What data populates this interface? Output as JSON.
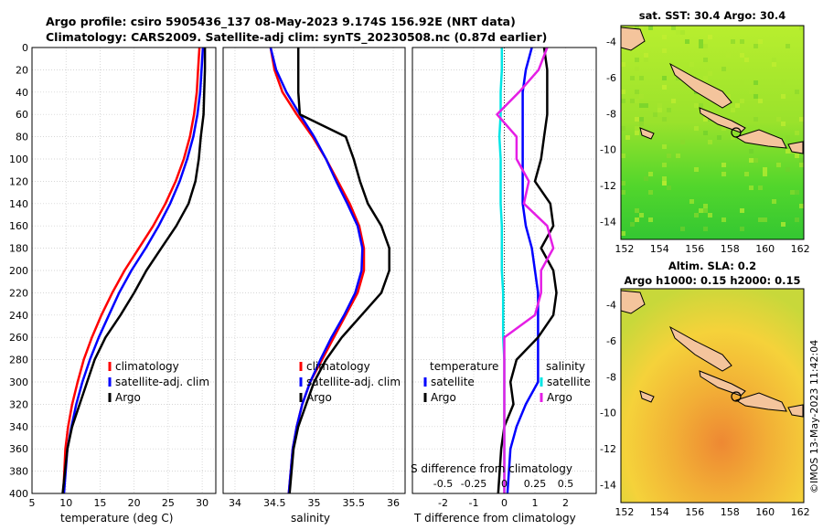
{
  "title_line1": "Argo profile: csiro 5905436_137 08-May-2023 9.174S 156.92E (NRT data)",
  "title_line2": "Climatology: CARS2009. Satellite-adj clim: synTS_20230508.nc (0.87d earlier)",
  "side_text": "©IMOS 13-May-2023 11:42:04",
  "map_top_title": "sat. SST: 30.4 Argo: 30.4",
  "map_bottom_title_line1": "Altim. SLA: 0.2",
  "map_bottom_title_line2": "Argo h1000: 0.15 h2000: 0.15",
  "colors": {
    "climatology": "#ff0000",
    "satellite": "#0000ff",
    "argo": "#000000",
    "t_sat": "#00e5e5",
    "s_sat": "#e51ee5",
    "land": "#f4c49c"
  },
  "chart_data": [
    {
      "type": "line",
      "name": "temperature",
      "title": "",
      "xlabel": "temperature (deg C)",
      "ylabel": "",
      "xlim": [
        5,
        32
      ],
      "ylim": [
        0,
        400
      ],
      "xticks": [
        "5",
        "10",
        "15",
        "20",
        "25",
        "30"
      ],
      "yticks": [
        "0",
        "20",
        "40",
        "60",
        "80",
        "100",
        "120",
        "140",
        "160",
        "180",
        "200",
        "220",
        "240",
        "260",
        "280",
        "300",
        "320",
        "340",
        "360",
        "380",
        "400"
      ],
      "legend": [
        "climatology",
        "satellite-adj. clim",
        "Argo"
      ],
      "legend_position": "lower-right",
      "series": [
        {
          "name": "climatology",
          "color": "#ff0000",
          "x": [
            29.6,
            29.4,
            29.2,
            28.8,
            28.2,
            27.3,
            26.1,
            24.6,
            22.8,
            20.7,
            18.6,
            16.8,
            15.2,
            13.8,
            12.6,
            11.7,
            10.9,
            10.3,
            9.9,
            9.6
          ],
          "y": [
            0,
            20,
            40,
            60,
            80,
            100,
            120,
            140,
            160,
            180,
            200,
            220,
            240,
            260,
            280,
            300,
            320,
            340,
            360,
            400
          ]
        },
        {
          "name": "satellite-adj. clim",
          "color": "#0000ff",
          "x": [
            30.1,
            29.9,
            29.7,
            29.3,
            28.7,
            27.8,
            26.7,
            25.3,
            23.6,
            21.7,
            19.6,
            17.8,
            16.3,
            14.8,
            13.5,
            12.4,
            11.5,
            10.8,
            10.2,
            9.7
          ],
          "y": [
            0,
            20,
            40,
            60,
            80,
            100,
            120,
            140,
            160,
            180,
            200,
            220,
            240,
            260,
            280,
            300,
            320,
            340,
            360,
            400
          ]
        },
        {
          "name": "Argo",
          "color": "#000000",
          "x": [
            30.4,
            30.4,
            30.3,
            30.2,
            29.8,
            29.5,
            29.0,
            28.0,
            26.2,
            24.0,
            21.8,
            20.0,
            18.0,
            15.8,
            14.2,
            13.1,
            12.0,
            10.9,
            10.2,
            9.5
          ],
          "y": [
            0,
            20,
            40,
            60,
            80,
            100,
            120,
            140,
            160,
            180,
            200,
            220,
            240,
            260,
            280,
            300,
            320,
            340,
            360,
            400
          ]
        }
      ]
    },
    {
      "type": "line",
      "name": "salinity",
      "title": "",
      "xlabel": "salinity",
      "ylabel": "",
      "xlim": [
        33.85,
        36.15
      ],
      "ylim": [
        0,
        400
      ],
      "xticks": [
        "34",
        "34.5",
        "35",
        "35.5",
        "36"
      ],
      "legend": [
        "climatology",
        "satellite-adj. clim",
        "Argo"
      ],
      "legend_position": "lower-right",
      "series": [
        {
          "name": "climatology",
          "color": "#ff0000",
          "x": [
            34.45,
            34.5,
            34.6,
            34.78,
            34.98,
            35.15,
            35.3,
            35.45,
            35.57,
            35.63,
            35.63,
            35.55,
            35.4,
            35.25,
            35.1,
            34.95,
            34.85,
            34.78,
            34.73,
            34.68
          ],
          "y": [
            0,
            20,
            40,
            60,
            80,
            100,
            120,
            140,
            160,
            180,
            200,
            220,
            240,
            260,
            280,
            300,
            320,
            340,
            360,
            400
          ]
        },
        {
          "name": "satellite-adj. clim",
          "color": "#0000ff",
          "x": [
            34.45,
            34.52,
            34.65,
            34.82,
            35.0,
            35.15,
            35.28,
            35.42,
            35.55,
            35.61,
            35.6,
            35.52,
            35.38,
            35.22,
            35.08,
            34.95,
            34.85,
            34.78,
            34.73,
            34.68
          ],
          "y": [
            0,
            20,
            40,
            60,
            80,
            100,
            120,
            140,
            160,
            180,
            200,
            220,
            240,
            260,
            280,
            300,
            320,
            340,
            360,
            400
          ]
        },
        {
          "name": "Argo",
          "color": "#000000",
          "x": [
            34.8,
            34.8,
            34.8,
            34.82,
            35.4,
            35.5,
            35.58,
            35.68,
            35.85,
            35.95,
            35.95,
            35.85,
            35.6,
            35.35,
            35.15,
            35.0,
            34.9,
            34.8,
            34.74,
            34.69
          ],
          "y": [
            0,
            20,
            40,
            60,
            80,
            100,
            120,
            140,
            160,
            180,
            200,
            220,
            240,
            260,
            280,
            300,
            320,
            340,
            360,
            400
          ]
        }
      ]
    },
    {
      "type": "line",
      "name": "difference",
      "title": "",
      "xlabel": "T difference from climatology",
      "ylabel": "",
      "xlim": [
        -3,
        3
      ],
      "ylim": [
        0,
        400
      ],
      "xticks": [
        "-2",
        "-1",
        "0",
        "1",
        "2"
      ],
      "secondary_xlabel": "S difference from climatology",
      "secondary_xticks": [
        "-0.5",
        "-0.25",
        "0",
        "0.25",
        "0.5"
      ],
      "secondary_xlim": [
        -0.75,
        0.75
      ],
      "legend": [
        "temperature",
        "satellite",
        "Argo",
        "salinity",
        "satellite",
        "Argo"
      ],
      "series": [
        {
          "name": "T satellite",
          "color": "#0000ff",
          "x": [
            0.9,
            0.7,
            0.6,
            0.6,
            0.6,
            0.6,
            0.6,
            0.6,
            0.7,
            0.9,
            1.0,
            1.1,
            1.1,
            1.1,
            1.1,
            1.1,
            0.7,
            0.4,
            0.2,
            0.1
          ],
          "y": [
            0,
            20,
            40,
            60,
            80,
            100,
            120,
            140,
            160,
            180,
            200,
            220,
            240,
            260,
            280,
            300,
            320,
            340,
            360,
            400
          ]
        },
        {
          "name": "T Argo",
          "color": "#000000",
          "x": [
            1.3,
            1.4,
            1.4,
            1.4,
            1.3,
            1.2,
            1.0,
            1.5,
            1.6,
            1.2,
            1.6,
            1.7,
            1.6,
            1.1,
            0.4,
            0.2,
            0.3,
            0.0,
            -0.1,
            -0.2
          ],
          "y": [
            0,
            20,
            40,
            60,
            80,
            100,
            120,
            140,
            160,
            180,
            200,
            220,
            240,
            260,
            280,
            300,
            320,
            340,
            360,
            400
          ]
        },
        {
          "name": "S satellite",
          "color": "#00e5e5",
          "x": [
            -0.02,
            -0.02,
            -0.03,
            -0.03,
            -0.04,
            -0.03,
            -0.03,
            -0.03,
            -0.02,
            -0.02,
            -0.02,
            -0.01,
            -0.01,
            -0.01,
            0.0,
            0.0,
            0.0,
            0.0,
            0.0,
            0.0
          ],
          "y": [
            0,
            20,
            40,
            60,
            80,
            100,
            120,
            140,
            160,
            180,
            200,
            220,
            240,
            260,
            280,
            300,
            320,
            340,
            360,
            400
          ]
        },
        {
          "name": "S Argo",
          "color": "#e51ee5",
          "x": [
            0.35,
            0.28,
            0.12,
            -0.06,
            0.1,
            0.1,
            0.2,
            0.16,
            0.35,
            0.4,
            0.3,
            0.3,
            0.25,
            0.0,
            0.0,
            0.0,
            0.0,
            0.0,
            0.0,
            0.0
          ],
          "y": [
            0,
            20,
            40,
            60,
            80,
            100,
            120,
            140,
            160,
            180,
            200,
            220,
            240,
            260,
            280,
            300,
            320,
            340,
            360,
            400
          ]
        }
      ]
    },
    {
      "type": "heatmap",
      "name": "sst-map",
      "title": "sat. SST: 30.4 Argo: 30.4",
      "xlim": [
        151.8,
        162.2
      ],
      "ylim": [
        -15,
        -3.1
      ],
      "xticks": [
        "152",
        "154",
        "156",
        "158",
        "160",
        "162"
      ],
      "yticks": [
        "-4",
        "-6",
        "-8",
        "-10",
        "-12",
        "-14"
      ],
      "argo_position": [
        156.92,
        -9.174
      ]
    },
    {
      "type": "heatmap",
      "name": "sla-map",
      "title": "Altim. SLA: 0.2 / Argo h1000: 0.15 h2000: 0.15",
      "xlim": [
        151.8,
        162.2
      ],
      "ylim": [
        -15,
        -3.1
      ],
      "xticks": [
        "152",
        "154",
        "156",
        "158",
        "160",
        "162"
      ],
      "yticks": [
        "-4",
        "-6",
        "-8",
        "-10",
        "-12",
        "-14"
      ],
      "argo_position": [
        156.92,
        -9.174
      ]
    }
  ]
}
